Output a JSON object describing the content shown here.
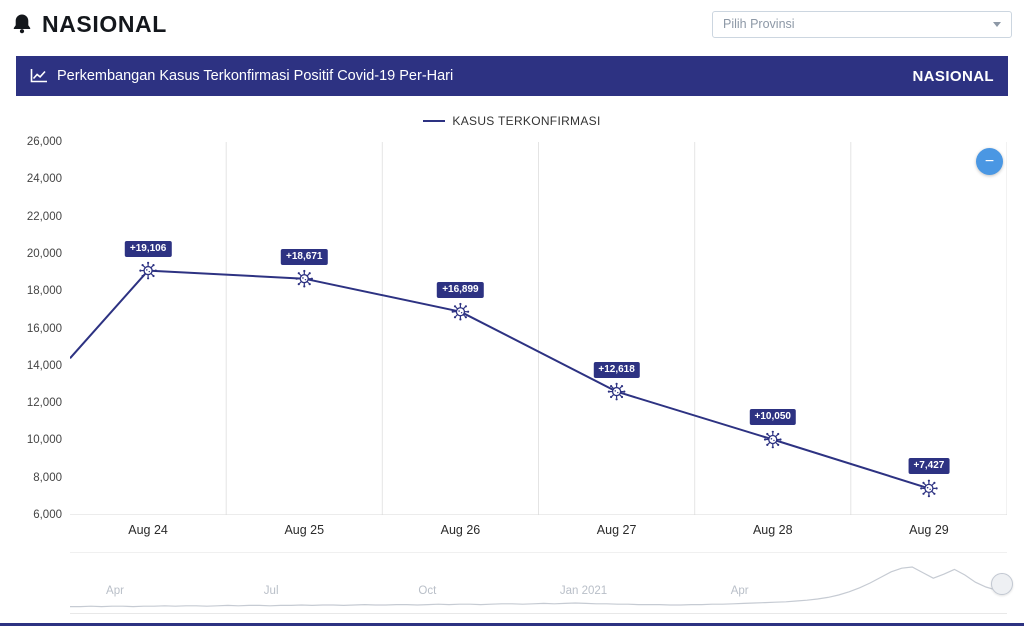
{
  "header": {
    "brand": "NASIONAL",
    "province_select": {
      "placeholder": "Pilih Provinsi"
    }
  },
  "banner": {
    "title": "Perkembangan Kasus Terkonfirmasi Positif Covid-19 Per-Hari",
    "region_label": "NASIONAL"
  },
  "legend": {
    "label": "KASUS TERKONFIRMASI"
  },
  "controls": {
    "zoom_out_label": "−"
  },
  "colors": {
    "accent": "#2d3282",
    "grid": "#e4e4e4",
    "zoom_button": "#4a97e3",
    "spark": "#c6cbd3"
  },
  "chart_data": {
    "type": "line",
    "title": "Perkembangan Kasus Terkonfirmasi Positif Covid-19 Per-Hari",
    "categories": [
      "Aug 24",
      "Aug 25",
      "Aug 26",
      "Aug 27",
      "Aug 28",
      "Aug 29"
    ],
    "series": [
      {
        "name": "KASUS TERKONFIRMASI",
        "values": [
          19106,
          18671,
          16899,
          12618,
          10050,
          7427
        ]
      }
    ],
    "data_labels": [
      "+19,106",
      "+18,671",
      "+16,899",
      "+12,618",
      "+10,050",
      "+7,427"
    ],
    "left_edge_value": 14400,
    "ylim": [
      6000,
      26000
    ],
    "ytick_step": 2000,
    "ytick_labels": [
      "26,000",
      "24,000",
      "22,000",
      "20,000",
      "18,000",
      "16,000",
      "14,000",
      "12,000",
      "10,000",
      "8,000",
      "6,000"
    ],
    "grid": "vertical",
    "legend_position": "top",
    "line_color": "#2d3282",
    "navigator": {
      "axis_labels": [
        "Apr",
        "Jul",
        "Oct",
        "Jan 2021",
        "Apr"
      ],
      "spark": [
        1,
        1,
        2,
        1,
        2,
        2,
        1,
        2,
        2,
        3,
        2,
        3,
        3,
        2,
        3,
        4,
        3,
        4,
        4,
        3,
        4,
        4,
        5,
        4,
        5,
        5,
        4,
        5,
        6,
        5,
        5,
        6,
        6,
        5,
        6,
        7,
        6,
        7,
        7,
        6,
        7,
        8,
        8,
        7,
        8,
        9,
        8,
        9,
        10,
        9,
        8,
        8,
        7,
        7,
        6,
        6,
        6,
        5,
        5,
        6,
        6,
        7,
        7,
        8,
        9,
        10,
        11,
        12,
        13,
        15,
        17,
        20,
        24,
        30,
        38,
        48,
        60,
        74,
        88,
        97,
        100,
        86,
        72,
        82,
        94,
        80,
        62,
        50,
        42,
        35
      ]
    }
  }
}
